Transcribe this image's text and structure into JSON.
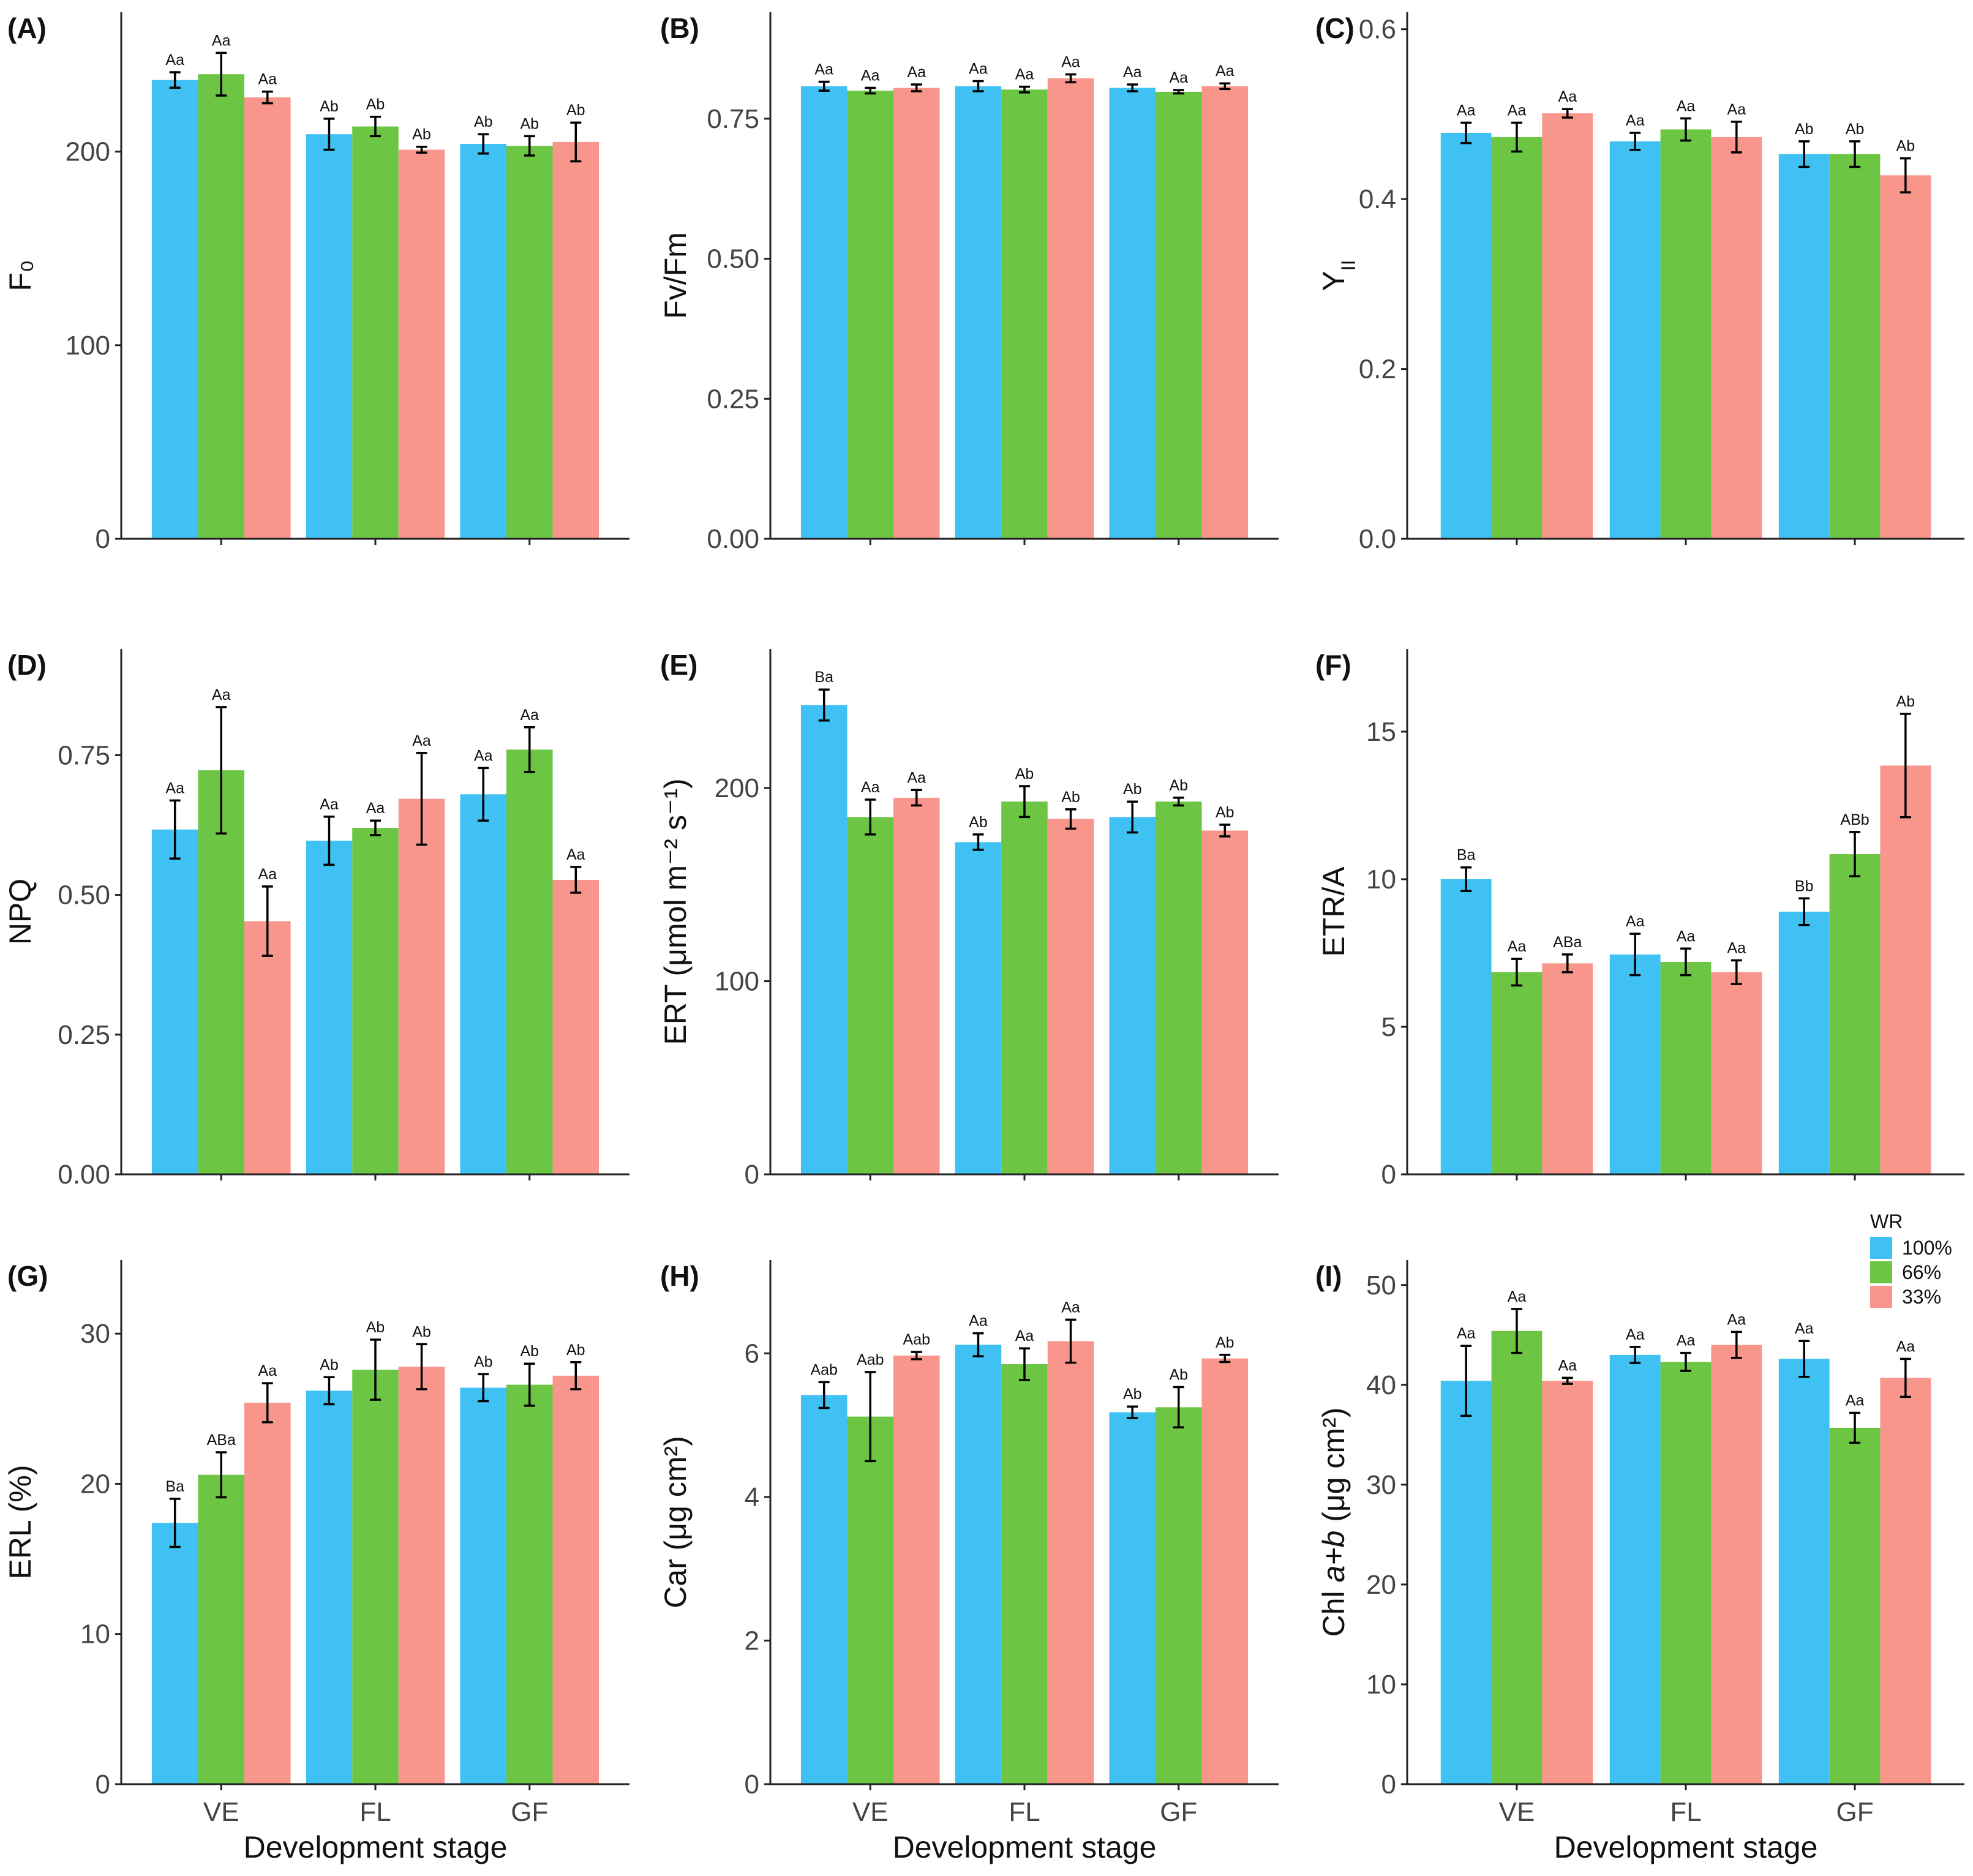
{
  "x_axis_title": "Development stage",
  "categories": [
    "VE",
    "FL",
    "GF"
  ],
  "legend": {
    "title": "WR",
    "items": [
      {
        "name": "100%",
        "color": "#3fc1f3"
      },
      {
        "name": "66%",
        "color": "#6cc644"
      },
      {
        "name": "33%",
        "color": "#f8968c"
      }
    ]
  },
  "chart_data": [
    {
      "type": "bar",
      "panel": "(A)",
      "ylabel": "F₀",
      "ylim": [
        0,
        272
      ],
      "yticks": [
        "0",
        "100",
        "200"
      ],
      "ytick_values": [
        0,
        100,
        200
      ],
      "categories": [
        "VE",
        "FL",
        "GF"
      ],
      "show_xlabels": false,
      "series": [
        {
          "name": "100%",
          "values": [
            237,
            209,
            204
          ],
          "errors": [
            4,
            8,
            5
          ],
          "labels": [
            "Aa",
            "Ab",
            "Ab"
          ]
        },
        {
          "name": "66%",
          "values": [
            240,
            213,
            203
          ],
          "errors": [
            11,
            5,
            5
          ],
          "labels": [
            "Aa",
            "Ab",
            "Ab"
          ]
        },
        {
          "name": "33%",
          "values": [
            228,
            201,
            205
          ],
          "errors": [
            3,
            1.5,
            10
          ],
          "labels": [
            "Aa",
            "Ab",
            "Ab"
          ]
        }
      ]
    },
    {
      "type": "bar",
      "panel": "(B)",
      "ylabel": "Fv/Fm",
      "ylim": [
        0,
        0.94
      ],
      "yticks": [
        "0.00",
        "0.25",
        "0.50",
        "0.75"
      ],
      "ytick_values": [
        0,
        0.25,
        0.5,
        0.75
      ],
      "categories": [
        "VE",
        "FL",
        "GF"
      ],
      "show_xlabels": false,
      "series": [
        {
          "name": "100%",
          "values": [
            0.808,
            0.808,
            0.805
          ],
          "errors": [
            0.008,
            0.009,
            0.006
          ],
          "labels": [
            "Aa",
            "Aa",
            "Aa"
          ]
        },
        {
          "name": "66%",
          "values": [
            0.8,
            0.802,
            0.798
          ],
          "errors": [
            0.005,
            0.005,
            0.003
          ],
          "labels": [
            "Aa",
            "Aa",
            "Aa"
          ]
        },
        {
          "name": "33%",
          "values": [
            0.805,
            0.822,
            0.808
          ],
          "errors": [
            0.006,
            0.007,
            0.005
          ],
          "labels": [
            "Aa",
            "Aa",
            "Aa"
          ]
        }
      ]
    },
    {
      "type": "bar",
      "panel": "(C)",
      "ylabel": "Y",
      "ylabel_subscript": "II",
      "ylim": [
        0,
        0.62
      ],
      "yticks": [
        "0.0",
        "0.2",
        "0.4",
        "0.6"
      ],
      "ytick_values": [
        0,
        0.2,
        0.4,
        0.6
      ],
      "categories": [
        "VE",
        "FL",
        "GF"
      ],
      "show_xlabels": false,
      "series": [
        {
          "name": "100%",
          "values": [
            0.478,
            0.468,
            0.453
          ],
          "errors": [
            0.012,
            0.01,
            0.015
          ],
          "labels": [
            "Aa",
            "Aa",
            "Ab"
          ]
        },
        {
          "name": "66%",
          "values": [
            0.473,
            0.482,
            0.453
          ],
          "errors": [
            0.017,
            0.013,
            0.015
          ],
          "labels": [
            "Aa",
            "Aa",
            "Ab"
          ]
        },
        {
          "name": "33%",
          "values": [
            0.501,
            0.473,
            0.428
          ],
          "errors": [
            0.005,
            0.018,
            0.02
          ],
          "labels": [
            "Aa",
            "Aa",
            "Ab"
          ]
        }
      ]
    },
    {
      "type": "bar",
      "panel": "(D)",
      "ylabel": "NPQ",
      "ylim": [
        0,
        0.94
      ],
      "yticks": [
        "0.00",
        "0.25",
        "0.50",
        "0.75"
      ],
      "ytick_values": [
        0,
        0.25,
        0.5,
        0.75
      ],
      "categories": [
        "VE",
        "FL",
        "GF"
      ],
      "show_xlabels": false,
      "series": [
        {
          "name": "100%",
          "values": [
            0.617,
            0.597,
            0.68
          ],
          "errors": [
            0.052,
            0.043,
            0.047
          ],
          "labels": [
            "Aa",
            "Aa",
            "Aa"
          ]
        },
        {
          "name": "66%",
          "values": [
            0.723,
            0.62,
            0.76
          ],
          "errors": [
            0.113,
            0.013,
            0.04
          ],
          "labels": [
            "Aa",
            "Aa",
            "Aa"
          ]
        },
        {
          "name": "33%",
          "values": [
            0.453,
            0.672,
            0.527
          ],
          "errors": [
            0.062,
            0.082,
            0.023
          ],
          "labels": [
            "Aa",
            "Aa",
            "Aa"
          ]
        }
      ]
    },
    {
      "type": "bar",
      "panel": "(E)",
      "ylabel": "ERT (μmol m⁻² s⁻¹)",
      "ylim": [
        0,
        272
      ],
      "yticks": [
        "0",
        "100",
        "200"
      ],
      "ytick_values": [
        0,
        100,
        200
      ],
      "categories": [
        "VE",
        "FL",
        "GF"
      ],
      "show_xlabels": false,
      "series": [
        {
          "name": "100%",
          "values": [
            243,
            172,
            185
          ],
          "errors": [
            8,
            4,
            8
          ],
          "labels": [
            "Ba",
            "Ab",
            "Ab"
          ]
        },
        {
          "name": "66%",
          "values": [
            185,
            193,
            193
          ],
          "errors": [
            9,
            8,
            2
          ],
          "labels": [
            "Aa",
            "Ab",
            "Ab"
          ]
        },
        {
          "name": "33%",
          "values": [
            195,
            184,
            178
          ],
          "errors": [
            4,
            5,
            3
          ],
          "labels": [
            "Aa",
            "Ab",
            "Ab"
          ]
        }
      ]
    },
    {
      "type": "bar",
      "panel": "(F)",
      "ylabel": "ETR/A",
      "ylim": [
        0,
        17.8
      ],
      "yticks": [
        "0",
        "5",
        "10",
        "15"
      ],
      "ytick_values": [
        0,
        5,
        10,
        15
      ],
      "categories": [
        "VE",
        "FL",
        "GF"
      ],
      "show_xlabels": false,
      "series": [
        {
          "name": "100%",
          "values": [
            10.0,
            7.45,
            8.9
          ],
          "errors": [
            0.4,
            0.7,
            0.45
          ],
          "labels": [
            "Ba",
            "Aa",
            "Bb"
          ]
        },
        {
          "name": "66%",
          "values": [
            6.85,
            7.2,
            10.85
          ],
          "errors": [
            0.45,
            0.45,
            0.75
          ],
          "labels": [
            "Aa",
            "Aa",
            "ABb"
          ]
        },
        {
          "name": "33%",
          "values": [
            7.15,
            6.85,
            13.85
          ],
          "errors": [
            0.3,
            0.4,
            1.75
          ],
          "labels": [
            "ABa",
            "Aa",
            "Ab"
          ]
        }
      ]
    },
    {
      "type": "bar",
      "panel": "(G)",
      "ylabel": "ERL (%)",
      "ylim": [
        0,
        34.9
      ],
      "yticks": [
        "0",
        "10",
        "20",
        "30"
      ],
      "ytick_values": [
        0,
        10,
        20,
        30
      ],
      "categories": [
        "VE",
        "FL",
        "GF"
      ],
      "show_xlabels": true,
      "series": [
        {
          "name": "100%",
          "values": [
            17.4,
            26.2,
            26.4
          ],
          "errors": [
            1.6,
            0.9,
            0.9
          ],
          "labels": [
            "Ba",
            "Ab",
            "Ab"
          ]
        },
        {
          "name": "66%",
          "values": [
            20.6,
            27.6,
            26.6
          ],
          "errors": [
            1.5,
            2.0,
            1.4
          ],
          "labels": [
            "ABa",
            "Ab",
            "Ab"
          ]
        },
        {
          "name": "33%",
          "values": [
            25.4,
            27.8,
            27.2
          ],
          "errors": [
            1.3,
            1.5,
            0.9
          ],
          "labels": [
            "Aa",
            "Ab",
            "Ab"
          ]
        }
      ]
    },
    {
      "type": "bar",
      "panel": "(H)",
      "ylabel": "Car (μg cm²)",
      "ylim": [
        0,
        7.3
      ],
      "yticks": [
        "0",
        "2",
        "4",
        "6"
      ],
      "ytick_values": [
        0,
        2,
        4,
        6
      ],
      "categories": [
        "VE",
        "FL",
        "GF"
      ],
      "show_xlabels": true,
      "series": [
        {
          "name": "100%",
          "values": [
            5.42,
            6.12,
            5.18
          ],
          "errors": [
            0.18,
            0.16,
            0.08
          ],
          "labels": [
            "Aab",
            "Aa",
            "Ab"
          ]
        },
        {
          "name": "66%",
          "values": [
            5.12,
            5.85,
            5.25
          ],
          "errors": [
            0.62,
            0.22,
            0.28
          ],
          "labels": [
            "Aab",
            "Aa",
            "Ab"
          ]
        },
        {
          "name": "33%",
          "values": [
            5.97,
            6.17,
            5.93
          ],
          "errors": [
            0.05,
            0.3,
            0.05
          ],
          "labels": [
            "Aab",
            "Aa",
            "Ab"
          ]
        }
      ]
    },
    {
      "type": "bar",
      "panel": "(I)",
      "ylabel": "Chl ",
      "ylabel_italic": "a+b",
      "ylabel_suffix": " (μg cm²)",
      "ylim": [
        0,
        52.5
      ],
      "yticks": [
        "0",
        "10",
        "20",
        "30",
        "40",
        "50"
      ],
      "ytick_values": [
        0,
        10,
        20,
        30,
        40,
        50
      ],
      "categories": [
        "VE",
        "FL",
        "GF"
      ],
      "show_xlabels": true,
      "series": [
        {
          "name": "100%",
          "values": [
            40.4,
            43.0,
            42.6
          ],
          "errors": [
            3.5,
            0.8,
            1.8
          ],
          "labels": [
            "Aa",
            "Aa",
            "Aa"
          ]
        },
        {
          "name": "66%",
          "values": [
            45.4,
            42.3,
            35.7
          ],
          "errors": [
            2.2,
            0.9,
            1.5
          ],
          "labels": [
            "Aa",
            "Aa",
            "Aa"
          ]
        },
        {
          "name": "33%",
          "values": [
            40.4,
            44.0,
            40.7
          ],
          "errors": [
            0.3,
            1.3,
            1.9
          ],
          "labels": [
            "Aa",
            "Aa",
            "Aa"
          ]
        }
      ]
    }
  ]
}
